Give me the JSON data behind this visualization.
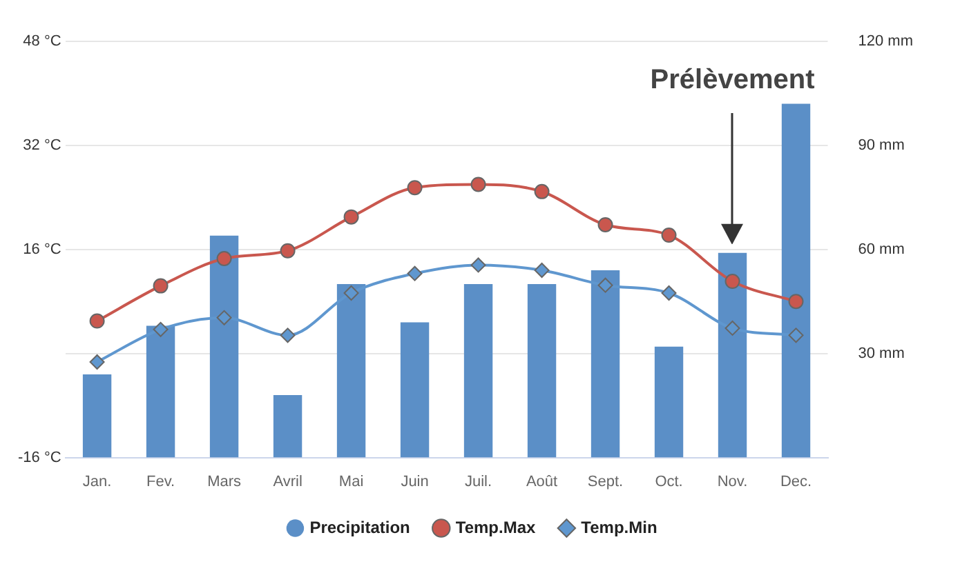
{
  "chart_data": {
    "type": "bar",
    "categories": [
      "Jan.",
      "Fev.",
      "Mars",
      "Avril",
      "Mai",
      "Juin",
      "Juil.",
      "Août",
      "Sept.",
      "Oct.",
      "Nov.",
      "Dec."
    ],
    "series": [
      {
        "name": "Precipitation",
        "axis": "y2",
        "color": "#5b8fc7",
        "values": [
          24,
          38,
          64,
          18,
          50,
          39,
          50,
          50,
          54,
          32,
          59,
          102
        ]
      },
      {
        "name": "Temp.Max",
        "type": "line",
        "marker": "circle",
        "color": "#c9574e",
        "values": [
          5,
          10.4,
          14.6,
          15.8,
          21,
          25.5,
          26,
          24.9,
          19.8,
          18.2,
          11.1,
          8
        ]
      },
      {
        "name": "Temp.Min",
        "type": "line",
        "marker": "diamond",
        "color": "#5f97cf",
        "values": [
          -1.3,
          3.7,
          5.5,
          2.8,
          9.3,
          12.3,
          13.6,
          12.8,
          10.5,
          9.3,
          3.9,
          2.8
        ]
      }
    ],
    "ylim": [
      -16,
      48
    ],
    "yticks": [
      {
        "value": -16,
        "label": "-16 °C"
      },
      {
        "value": 0,
        "label": null
      },
      {
        "value": 16,
        "label": "16 °C"
      },
      {
        "value": 32,
        "label": "32 °C"
      },
      {
        "value": 48,
        "label": "48 °C"
      }
    ],
    "y2lim": [
      0,
      120
    ],
    "y2ticks": [
      {
        "value": 0,
        "label": null
      },
      {
        "value": 30,
        "label": "30 mm"
      },
      {
        "value": 60,
        "label": "60 mm"
      },
      {
        "value": 90,
        "label": "90 mm"
      },
      {
        "value": 120,
        "label": "120 mm"
      }
    ],
    "grid": "y",
    "legend": "bottom",
    "annotations": [
      {
        "text": "Prélèvement",
        "x": "Nov."
      }
    ]
  }
}
